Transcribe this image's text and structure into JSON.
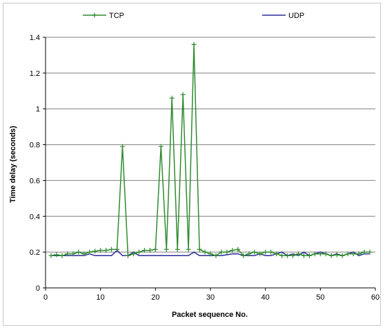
{
  "chart_data": {
    "type": "line",
    "xlabel": "Packet sequence No.",
    "ylabel": "Time delay (seconds)",
    "xlim": [
      0,
      60
    ],
    "ylim": [
      0,
      1.4
    ],
    "x_ticks": [
      0,
      10,
      20,
      30,
      40,
      50,
      60
    ],
    "y_ticks": [
      0,
      0.2,
      0.4,
      0.6,
      0.8,
      1,
      1.2,
      1.4
    ],
    "grid": "horizontal",
    "legend_position": "top",
    "series": [
      {
        "name": "TCP",
        "color": "#2e8b2e",
        "marker": "plus",
        "x": [
          1,
          2,
          3,
          4,
          5,
          6,
          7,
          8,
          9,
          10,
          11,
          12,
          13,
          14,
          15,
          16,
          17,
          18,
          19,
          20,
          21,
          22,
          23,
          24,
          25,
          26,
          27,
          28,
          29,
          30,
          31,
          32,
          33,
          34,
          35,
          36,
          37,
          38,
          39,
          40,
          41,
          42,
          43,
          44,
          45,
          46,
          47,
          48,
          49,
          50,
          51,
          52,
          53,
          54,
          55,
          56,
          57,
          58,
          59
        ],
        "values": [
          0.18,
          0.185,
          0.18,
          0.19,
          0.19,
          0.2,
          0.19,
          0.2,
          0.205,
          0.21,
          0.21,
          0.215,
          0.215,
          0.79,
          0.18,
          0.19,
          0.2,
          0.21,
          0.21,
          0.215,
          0.79,
          0.215,
          1.06,
          0.215,
          1.08,
          0.215,
          1.36,
          0.215,
          0.2,
          0.19,
          0.18,
          0.2,
          0.2,
          0.21,
          0.215,
          0.18,
          0.19,
          0.2,
          0.19,
          0.2,
          0.2,
          0.19,
          0.18,
          0.18,
          0.18,
          0.19,
          0.18,
          0.18,
          0.19,
          0.19,
          0.19,
          0.18,
          0.185,
          0.18,
          0.19,
          0.19,
          0.19,
          0.2,
          0.2
        ]
      },
      {
        "name": "UDP",
        "color": "#2a2a9a",
        "marker": "none",
        "x": [
          1,
          2,
          3,
          4,
          5,
          6,
          7,
          8,
          9,
          10,
          11,
          12,
          13,
          14,
          15,
          16,
          17,
          18,
          19,
          20,
          21,
          22,
          23,
          24,
          25,
          26,
          27,
          28,
          29,
          30,
          31,
          32,
          33,
          34,
          35,
          36,
          37,
          38,
          39,
          40,
          41,
          42,
          43,
          44,
          45,
          46,
          47,
          48,
          49,
          50,
          51,
          52,
          53,
          54,
          55,
          56,
          57,
          58,
          59
        ],
        "values": [
          0.18,
          0.18,
          0.18,
          0.18,
          0.18,
          0.18,
          0.18,
          0.19,
          0.18,
          0.18,
          0.18,
          0.18,
          0.21,
          0.18,
          0.18,
          0.2,
          0.18,
          0.18,
          0.18,
          0.18,
          0.18,
          0.18,
          0.18,
          0.18,
          0.18,
          0.18,
          0.2,
          0.18,
          0.18,
          0.18,
          0.18,
          0.18,
          0.185,
          0.19,
          0.19,
          0.18,
          0.18,
          0.18,
          0.19,
          0.18,
          0.18,
          0.19,
          0.2,
          0.18,
          0.19,
          0.18,
          0.2,
          0.18,
          0.19,
          0.2,
          0.19,
          0.18,
          0.19,
          0.18,
          0.19,
          0.2,
          0.18,
          0.19,
          0.19
        ]
      }
    ]
  }
}
